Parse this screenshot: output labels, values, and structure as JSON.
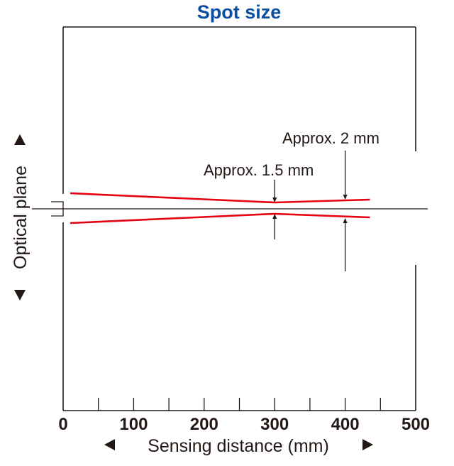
{
  "title": "Spot size",
  "x_axis": {
    "label": "Sensing distance (mm)",
    "ticks": [
      "0",
      "100",
      "200",
      "300",
      "400",
      "500"
    ],
    "range": [
      0,
      500
    ],
    "minor_step": 50
  },
  "y_axis": {
    "label": "Optical plane"
  },
  "beam": {
    "color": "#e60012",
    "start_mm": 10,
    "end_mm": 435,
    "waist_mm": 300
  },
  "annotations": [
    {
      "text": "Approx. 1.5 mm",
      "at_mm": 300
    },
    {
      "text": "Approx. 2 mm",
      "at_mm": 400
    }
  ],
  "colors": {
    "title": "#0b4fa2",
    "beam": "#e60012",
    "lines": "#231815"
  }
}
